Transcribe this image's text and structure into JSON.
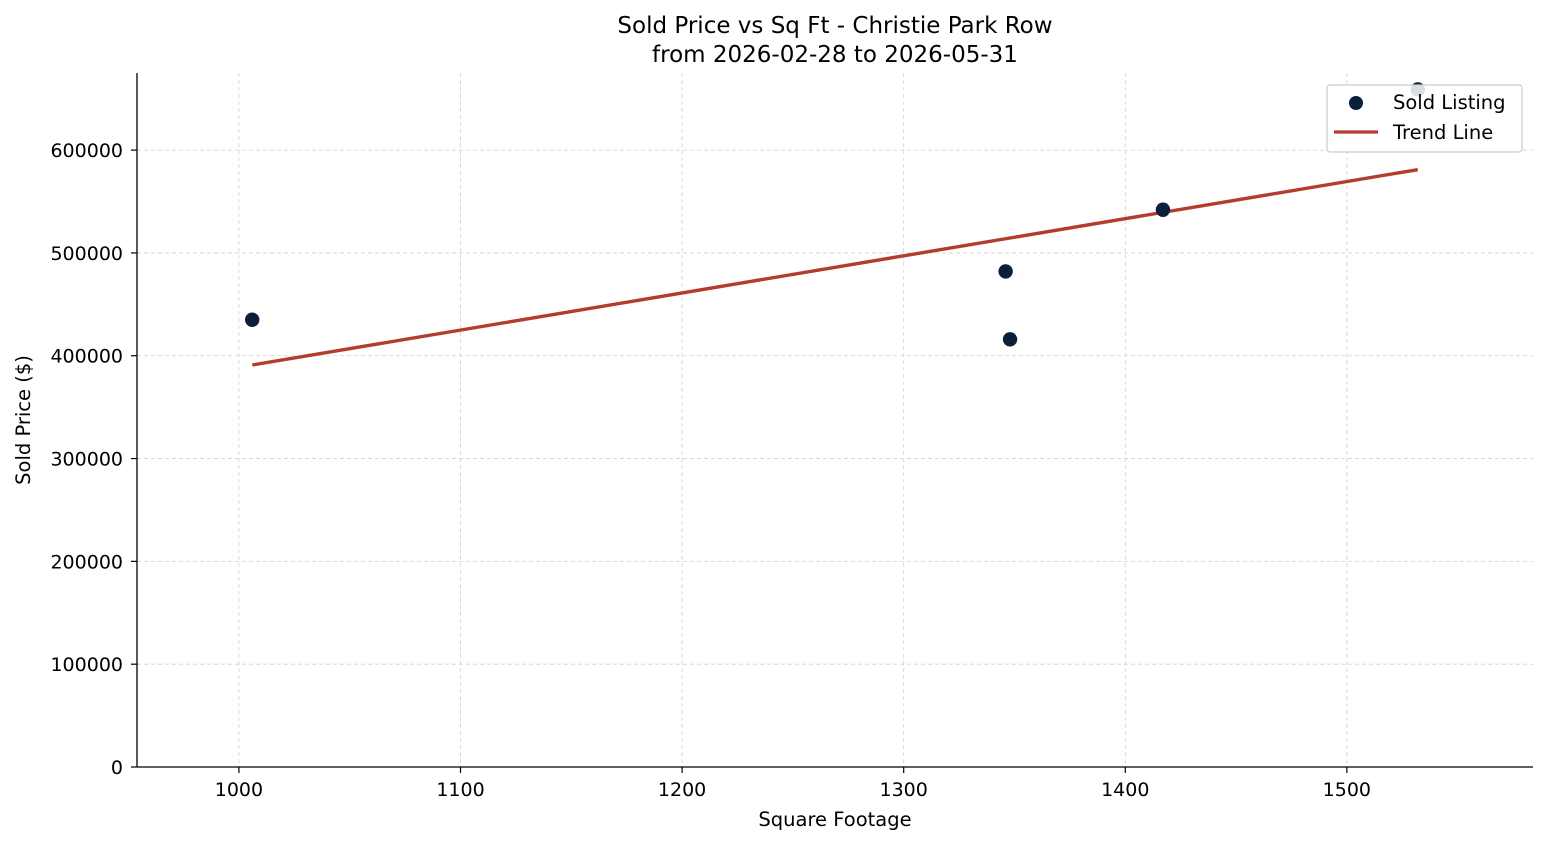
{
  "chart_data": {
    "type": "scatter",
    "title": "Sold Price vs Sq Ft - Christie Park Row",
    "subtitle": "from 2026-02-28 to 2026-05-31",
    "xlabel": "Square Footage",
    "ylabel": "Sold Price ($)",
    "xlim": [
      954,
      1584
    ],
    "ylim": [
      0,
      675000
    ],
    "xticks": [
      1000,
      1100,
      1200,
      1300,
      1400,
      1500
    ],
    "yticks": [
      0,
      100000,
      200000,
      300000,
      400000,
      500000,
      600000
    ],
    "grid": true,
    "legend_position": "top-right",
    "series": [
      {
        "name": "Sold Listing",
        "kind": "scatter",
        "color": "#0b1f3a",
        "points": [
          {
            "x": 1006,
            "y": 435000
          },
          {
            "x": 1346,
            "y": 482000
          },
          {
            "x": 1348,
            "y": 416000
          },
          {
            "x": 1417,
            "y": 542000
          },
          {
            "x": 1532,
            "y": 659000
          }
        ]
      },
      {
        "name": "Trend Line",
        "kind": "line",
        "color": "#b33c2e",
        "points": [
          {
            "x": 1006,
            "y": 391000
          },
          {
            "x": 1532,
            "y": 581000
          }
        ]
      }
    ]
  }
}
